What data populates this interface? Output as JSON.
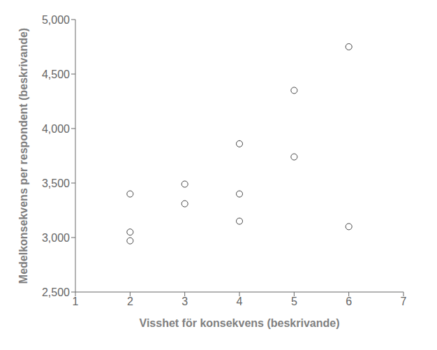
{
  "chart_data": {
    "type": "scatter",
    "x": [
      2,
      2,
      2,
      3,
      3,
      4,
      4,
      4,
      5,
      5,
      6,
      6
    ],
    "y": [
      3.4,
      3.05,
      2.97,
      3.49,
      3.31,
      3.86,
      3.4,
      3.15,
      4.35,
      3.74,
      4.75,
      3.1
    ],
    "xlim": [
      1,
      7
    ],
    "ylim": [
      2.5,
      5.0
    ],
    "xticks": [
      1,
      2,
      3,
      4,
      5,
      6,
      7
    ],
    "yticks": [
      {
        "value": 2.5,
        "label": "2,500"
      },
      {
        "value": 3.0,
        "label": "3,000"
      },
      {
        "value": 3.5,
        "label": "3,500"
      },
      {
        "value": 4.0,
        "label": "4,000"
      },
      {
        "value": 4.5,
        "label": "4,500"
      },
      {
        "value": 5.0,
        "label": "5,000"
      }
    ],
    "xlabel": "Visshet för konsekvens (beskrivande)",
    "ylabel": "Medelkonsekvens per respondent (beskrivande)",
    "color": "#444444",
    "marker": "circle",
    "grid": false
  }
}
